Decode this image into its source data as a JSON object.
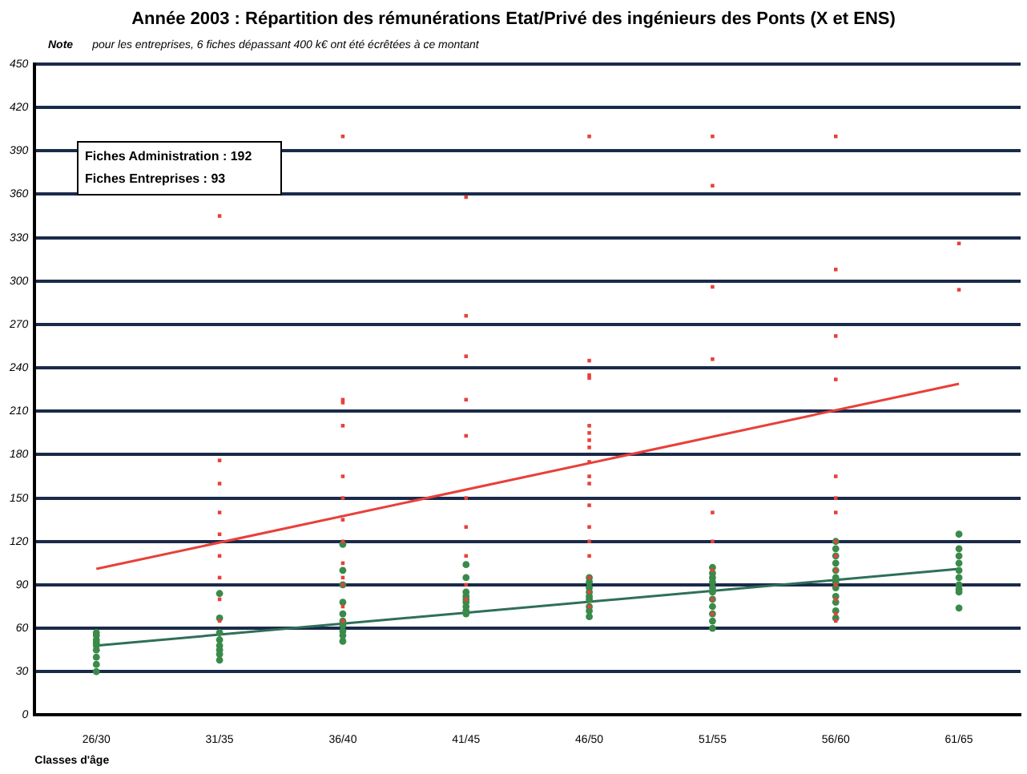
{
  "chart_data": {
    "type": "scatter",
    "title": "Année 2003 :  Répartition des rémunérations Etat/Privé des ingénieurs des Ponts (X et ENS)",
    "xlabel": "Classes d'âge",
    "annotations": [
      "Note",
      "pour les entreprises, 6 fiches dépassant 400 k€ ont été écrêtées à ce montant",
      "Fiches Administration : 192",
      "Fiches Entreprises : 93"
    ],
    "categories": [
      "26/30",
      "31/35",
      "36/40",
      "41/45",
      "46/50",
      "51/55",
      "56/60",
      "61/65"
    ],
    "ylim": [
      0,
      450
    ],
    "yticks": [
      0,
      30,
      60,
      90,
      120,
      150,
      180,
      210,
      240,
      270,
      300,
      330,
      360,
      390,
      420,
      450
    ],
    "grid": "y",
    "legend": false,
    "series": [
      {
        "marker": "square",
        "color": "#e8403a",
        "x": [
          "31/35",
          "31/35",
          "31/35",
          "31/35",
          "31/35",
          "31/35",
          "31/35",
          "31/35",
          "31/35",
          "36/40",
          "36/40",
          "36/40",
          "36/40",
          "36/40",
          "36/40",
          "36/40",
          "36/40",
          "36/40",
          "36/40",
          "36/40",
          "36/40",
          "36/40",
          "41/45",
          "41/45",
          "41/45",
          "41/45",
          "41/45",
          "41/45",
          "41/45",
          "41/45",
          "41/45",
          "41/45",
          "46/50",
          "46/50",
          "46/50",
          "46/50",
          "46/50",
          "46/50",
          "46/50",
          "46/50",
          "46/50",
          "46/50",
          "46/50",
          "46/50",
          "46/50",
          "46/50",
          "46/50",
          "46/50",
          "46/50",
          "46/50",
          "51/55",
          "51/55",
          "51/55",
          "51/55",
          "51/55",
          "51/55",
          "51/55",
          "51/55",
          "51/55",
          "56/60",
          "56/60",
          "56/60",
          "56/60",
          "56/60",
          "56/60",
          "56/60",
          "56/60",
          "56/60",
          "56/60",
          "56/60",
          "56/60",
          "56/60",
          "56/60",
          "61/65",
          "61/65"
        ],
        "values": [
          345,
          176,
          160,
          140,
          125,
          110,
          95,
          80,
          65,
          400,
          218,
          216,
          200,
          165,
          150,
          135,
          120,
          105,
          95,
          90,
          75,
          65,
          358,
          276,
          248,
          218,
          193,
          150,
          130,
          110,
          90,
          80,
          400,
          245,
          235,
          233,
          200,
          195,
          190,
          185,
          175,
          165,
          160,
          145,
          130,
          120,
          110,
          95,
          85,
          75,
          400,
          366,
          296,
          246,
          140,
          120,
          100,
          80,
          70,
          400,
          308,
          262,
          232,
          165,
          150,
          140,
          120,
          110,
          100,
          90,
          80,
          70,
          65,
          326,
          294
        ]
      },
      {
        "marker": "circle",
        "color": "#3a8a4a",
        "x": [
          "26/30",
          "26/30",
          "26/30",
          "26/30",
          "26/30",
          "26/30",
          "26/30",
          "26/30",
          "26/30",
          "31/35",
          "31/35",
          "31/35",
          "31/35",
          "31/35",
          "31/35",
          "31/35",
          "31/35",
          "36/40",
          "36/40",
          "36/40",
          "36/40",
          "36/40",
          "36/40",
          "36/40",
          "36/40",
          "36/40",
          "36/40",
          "41/45",
          "41/45",
          "41/45",
          "41/45",
          "41/45",
          "41/45",
          "41/45",
          "41/45",
          "41/45",
          "46/50",
          "46/50",
          "46/50",
          "46/50",
          "46/50",
          "46/50",
          "46/50",
          "46/50",
          "46/50",
          "51/55",
          "51/55",
          "51/55",
          "51/55",
          "51/55",
          "51/55",
          "51/55",
          "51/55",
          "51/55",
          "51/55",
          "51/55",
          "56/60",
          "56/60",
          "56/60",
          "56/60",
          "56/60",
          "56/60",
          "56/60",
          "56/60",
          "56/60",
          "56/60",
          "56/60",
          "56/60",
          "61/65",
          "61/65",
          "61/65",
          "61/65",
          "61/65",
          "61/65",
          "61/65",
          "61/65",
          "61/65",
          "61/65"
        ],
        "values": [
          30,
          35,
          40,
          45,
          48,
          50,
          52,
          55,
          57,
          84,
          67,
          57,
          52,
          48,
          45,
          42,
          38,
          118,
          100,
          90,
          78,
          70,
          65,
          62,
          58,
          55,
          51,
          104,
          95,
          85,
          82,
          80,
          78,
          75,
          72,
          70,
          95,
          92,
          88,
          85,
          82,
          80,
          75,
          72,
          68,
          102,
          98,
          95,
          92,
          88,
          85,
          80,
          75,
          70,
          65,
          60,
          120,
          115,
          110,
          105,
          100,
          95,
          92,
          88,
          82,
          78,
          72,
          67,
          125,
          115,
          110,
          105,
          100,
          95,
          90,
          87,
          85,
          74
        ]
      },
      {
        "type": "line",
        "color": "#e8403a",
        "x": [
          "26/30",
          "61/65"
        ],
        "values": [
          101,
          229
        ]
      },
      {
        "type": "line",
        "color": "#2f6f5a",
        "x": [
          "26/30",
          "61/65"
        ],
        "values": [
          48,
          101
        ]
      }
    ]
  }
}
